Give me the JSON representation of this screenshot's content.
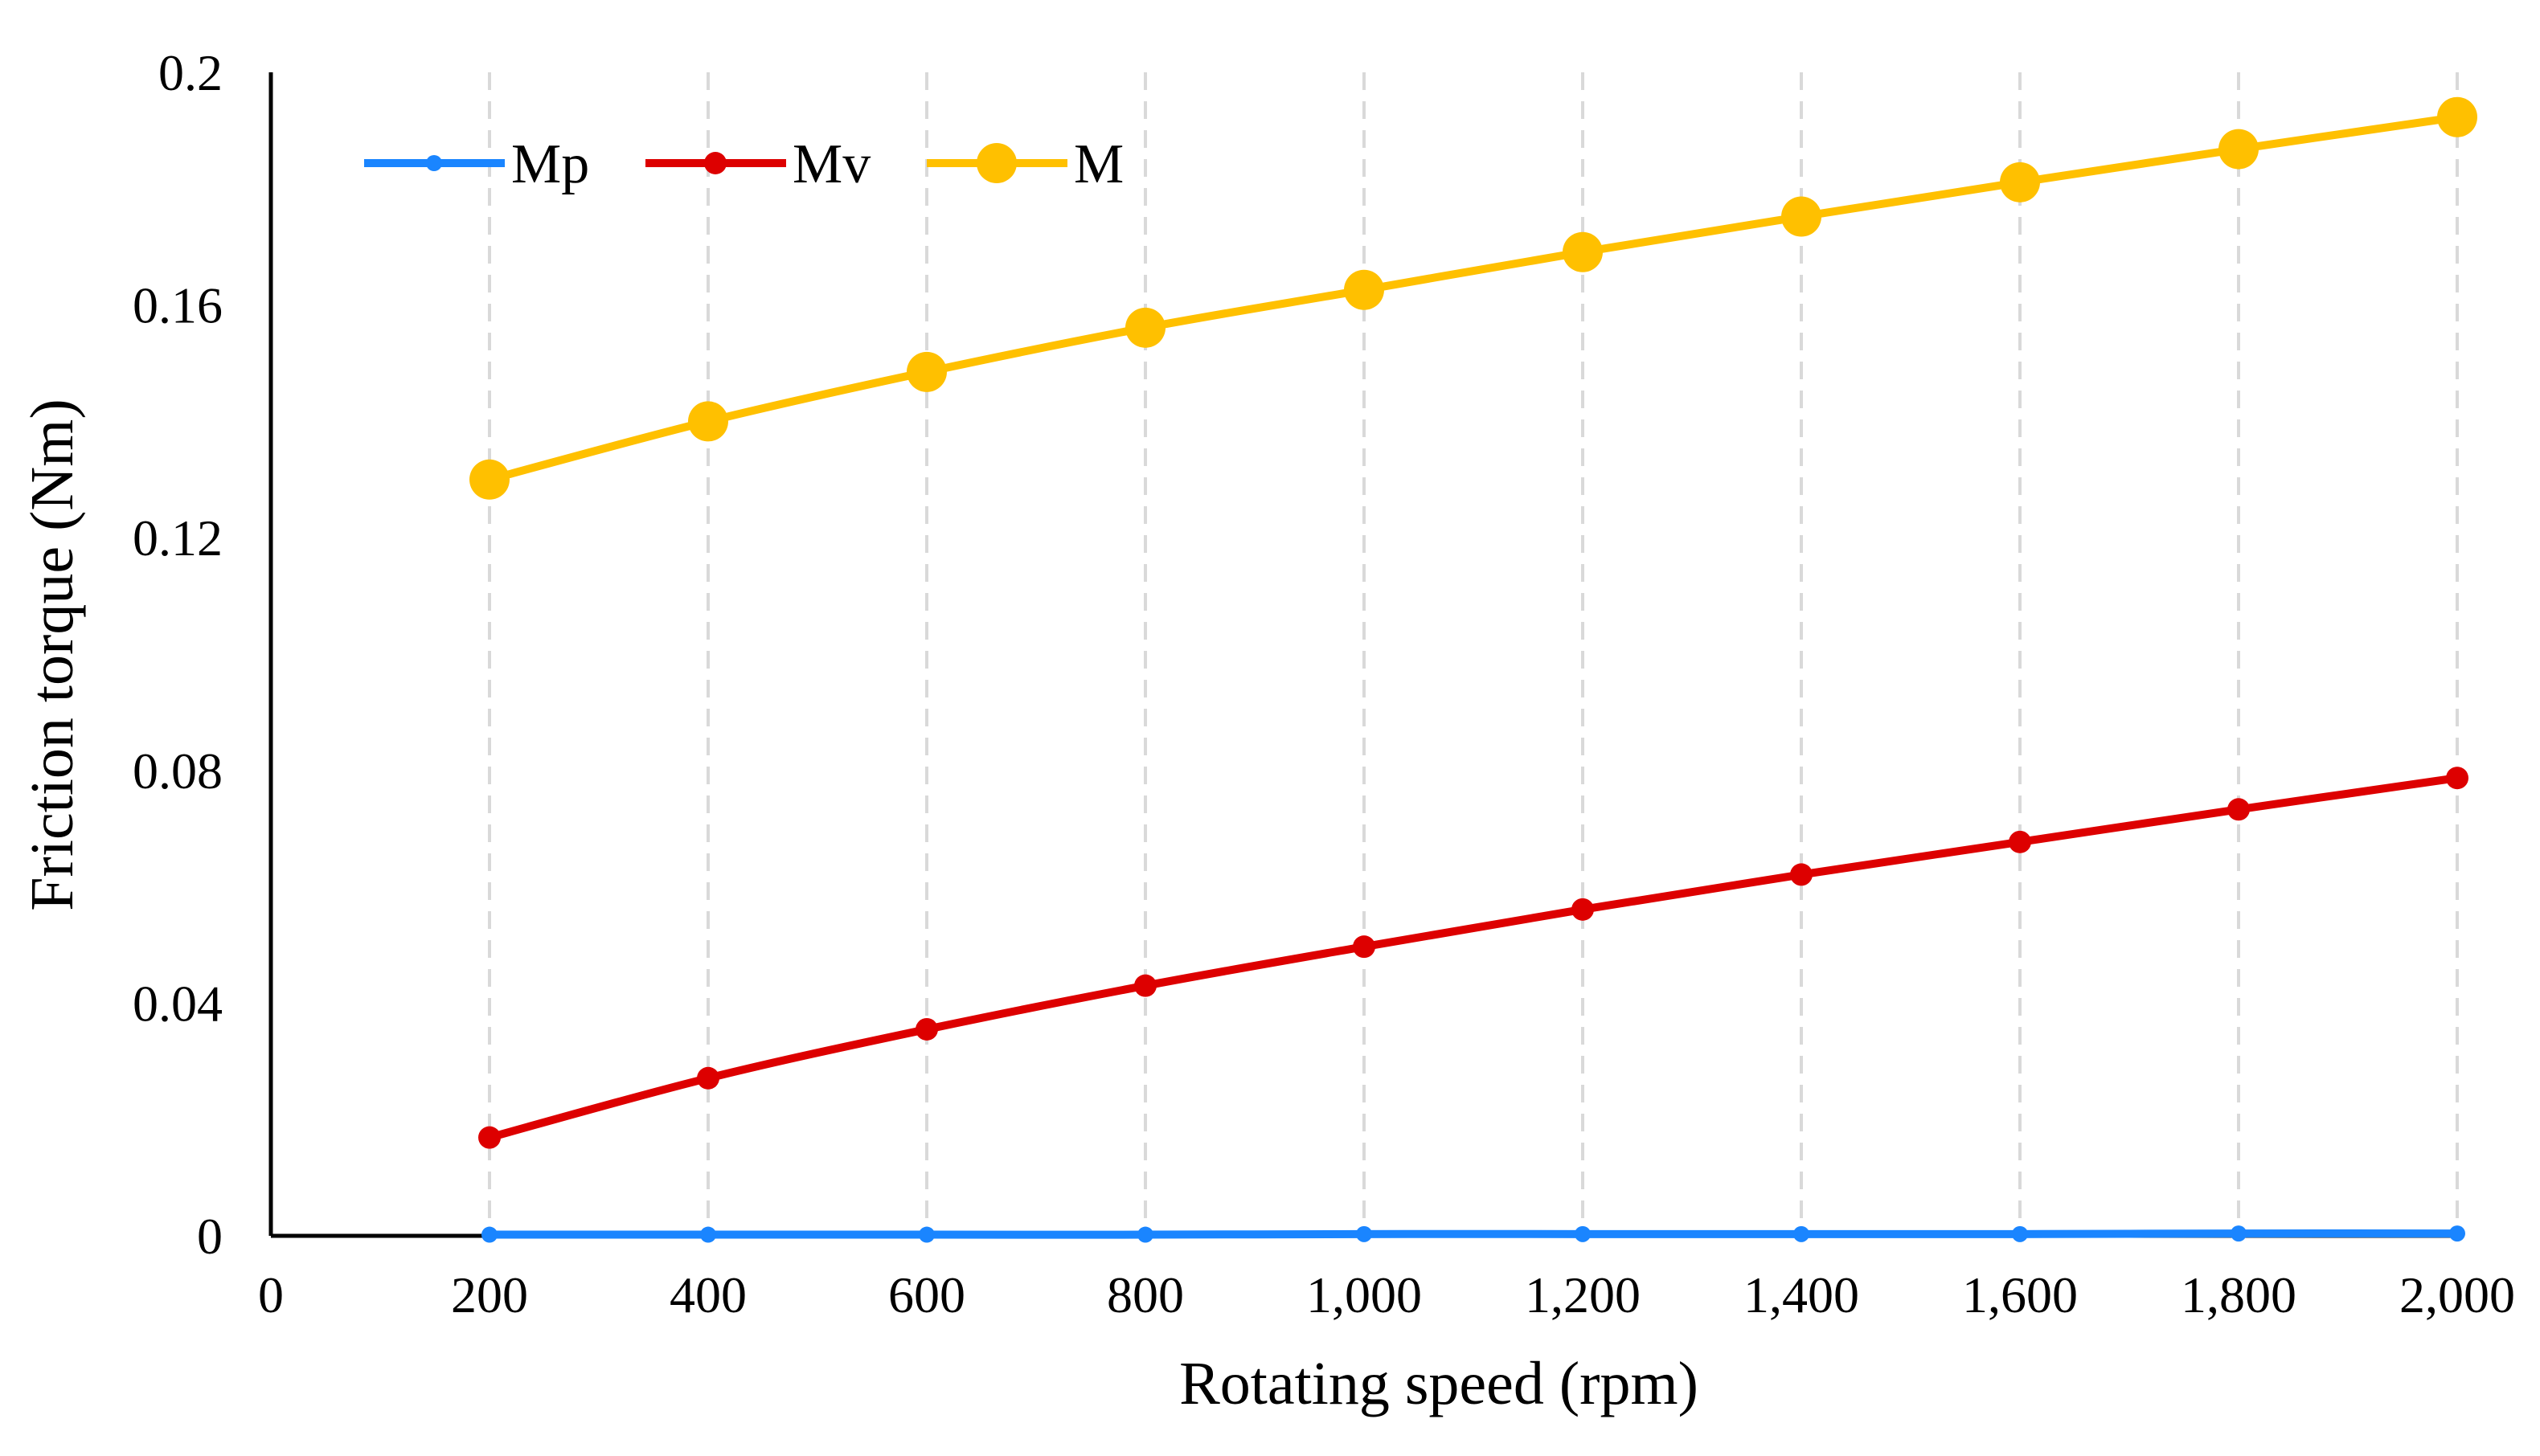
{
  "chart_data": {
    "type": "line",
    "title": "",
    "xlabel": "Rotating speed (rpm)",
    "ylabel": "Friction torque (Nm)",
    "xlim": [
      0,
      2000
    ],
    "ylim": [
      0,
      0.2
    ],
    "x_ticks": [
      0,
      200,
      400,
      600,
      800,
      1000,
      1200,
      1400,
      1600,
      1800,
      2000
    ],
    "x_tick_labels": [
      "0",
      "200",
      "400",
      "600",
      "800",
      "1,000",
      "1,200",
      "1,400",
      "1,600",
      "1,800",
      "2,000"
    ],
    "y_ticks": [
      0,
      0.04,
      0.08,
      0.12,
      0.16,
      0.2
    ],
    "y_tick_labels": [
      "0",
      "0.04",
      "0.08",
      "0.12",
      "0.16",
      "0.2"
    ],
    "grid": "vertical dashed",
    "legend_position": "top-left",
    "x": [
      200,
      400,
      600,
      800,
      1000,
      1200,
      1400,
      1600,
      1800,
      2000
    ],
    "series": [
      {
        "name": "Mp",
        "color": "#1a85ff",
        "marker": "small",
        "values": [
          0.0002,
          0.0002,
          0.0002,
          0.0002,
          0.0003,
          0.0003,
          0.0003,
          0.0003,
          0.0004,
          0.0004
        ]
      },
      {
        "name": "Mv",
        "color": "#dd0000",
        "marker": "medium",
        "values": [
          0.0169,
          0.0271,
          0.0355,
          0.043,
          0.0497,
          0.0561,
          0.0621,
          0.0677,
          0.0733,
          0.0787
        ]
      },
      {
        "name": "M",
        "color": "#ffc000",
        "marker": "large",
        "values": [
          0.13,
          0.14,
          0.1485,
          0.1561,
          0.1626,
          0.1691,
          0.1752,
          0.1811,
          0.1868,
          0.1923
        ]
      }
    ]
  }
}
